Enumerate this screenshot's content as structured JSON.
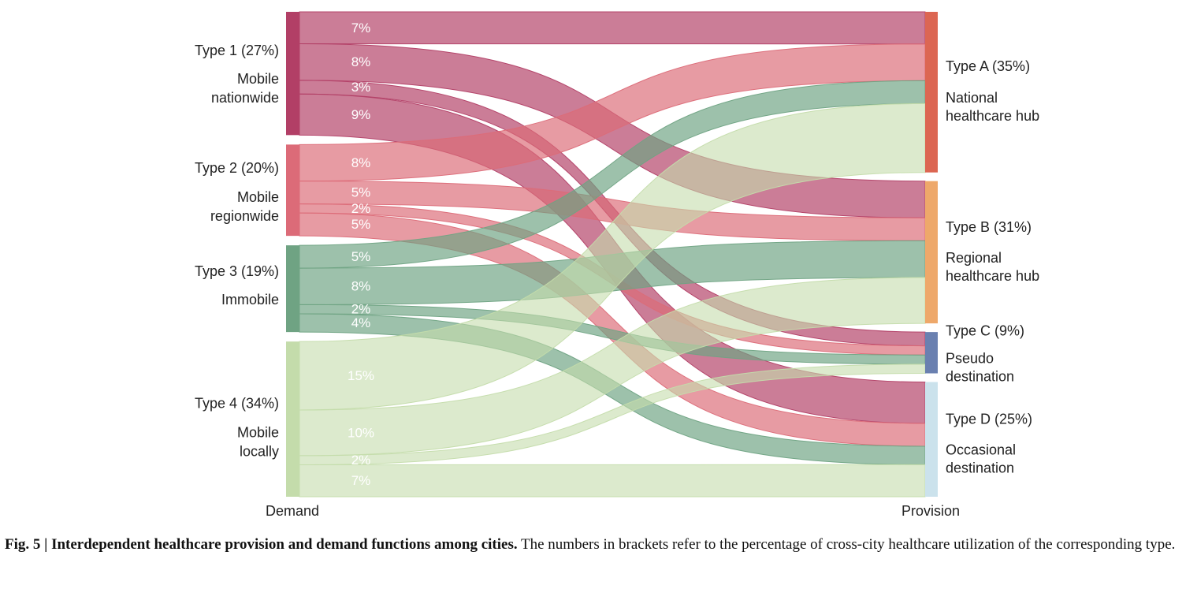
{
  "chart_data": {
    "type": "sankey",
    "axis_left": "Demand",
    "axis_right": "Provision",
    "demand": [
      {
        "id": "t1",
        "label": "Type 1 (27%)",
        "sub": [
          "Mobile",
          "nationwide"
        ],
        "value": 27,
        "color": "#b23f66"
      },
      {
        "id": "t2",
        "label": "Type 2 (20%)",
        "sub": [
          "Mobile",
          "regionwide"
        ],
        "value": 20,
        "color": "#dc6b78"
      },
      {
        "id": "t3",
        "label": "Type 3 (19%)",
        "sub": [
          "Immobile"
        ],
        "value": 19,
        "color": "#6fa383"
      },
      {
        "id": "t4",
        "label": "Type 4 (34%)",
        "sub": [
          "Mobile",
          "locally"
        ],
        "value": 34,
        "color": "#c4dcab"
      }
    ],
    "provision": [
      {
        "id": "A",
        "label": "Type A (35%)",
        "sub": [
          "National",
          "healthcare hub"
        ],
        "value": 35,
        "color": "#dc6652"
      },
      {
        "id": "B",
        "label": "Type B (31%)",
        "sub": [
          "Regional",
          "healthcare hub"
        ],
        "value": 31,
        "color": "#eea86a"
      },
      {
        "id": "C",
        "label": "Type C (9%)",
        "sub": [
          "Pseudo",
          "destination"
        ],
        "value": 9,
        "color": "#6a80b0"
      },
      {
        "id": "D",
        "label": "Type D (25%)",
        "sub": [
          "Occasional",
          "destination"
        ],
        "value": 25,
        "color": "#cbe2ec"
      }
    ],
    "flows": [
      {
        "from": "t1",
        "to": "A",
        "value": 7,
        "label": "7%"
      },
      {
        "from": "t1",
        "to": "B",
        "value": 8,
        "label": "8%"
      },
      {
        "from": "t1",
        "to": "C",
        "value": 3,
        "label": "3%"
      },
      {
        "from": "t1",
        "to": "D",
        "value": 9,
        "label": "9%"
      },
      {
        "from": "t2",
        "to": "A",
        "value": 8,
        "label": "8%"
      },
      {
        "from": "t2",
        "to": "B",
        "value": 5,
        "label": "5%"
      },
      {
        "from": "t2",
        "to": "C",
        "value": 2,
        "label": "2%"
      },
      {
        "from": "t2",
        "to": "D",
        "value": 5,
        "label": "5%"
      },
      {
        "from": "t3",
        "to": "A",
        "value": 5,
        "label": "5%"
      },
      {
        "from": "t3",
        "to": "B",
        "value": 8,
        "label": "8%"
      },
      {
        "from": "t3",
        "to": "C",
        "value": 2,
        "label": "2%"
      },
      {
        "from": "t3",
        "to": "D",
        "value": 4,
        "label": "4%"
      },
      {
        "from": "t4",
        "to": "A",
        "value": 15,
        "label": "15%"
      },
      {
        "from": "t4",
        "to": "B",
        "value": 10,
        "label": "10%"
      },
      {
        "from": "t4",
        "to": "C",
        "value": 2,
        "label": "2%"
      },
      {
        "from": "t4",
        "to": "D",
        "value": 7,
        "label": "7%"
      }
    ]
  },
  "caption": {
    "fig": "Fig. 5 | ",
    "title": "Interdependent healthcare provision and demand functions among cities.",
    "text": " The numbers in brackets refer to the percentage of cross-city healthcare utilization of the corresponding type."
  }
}
